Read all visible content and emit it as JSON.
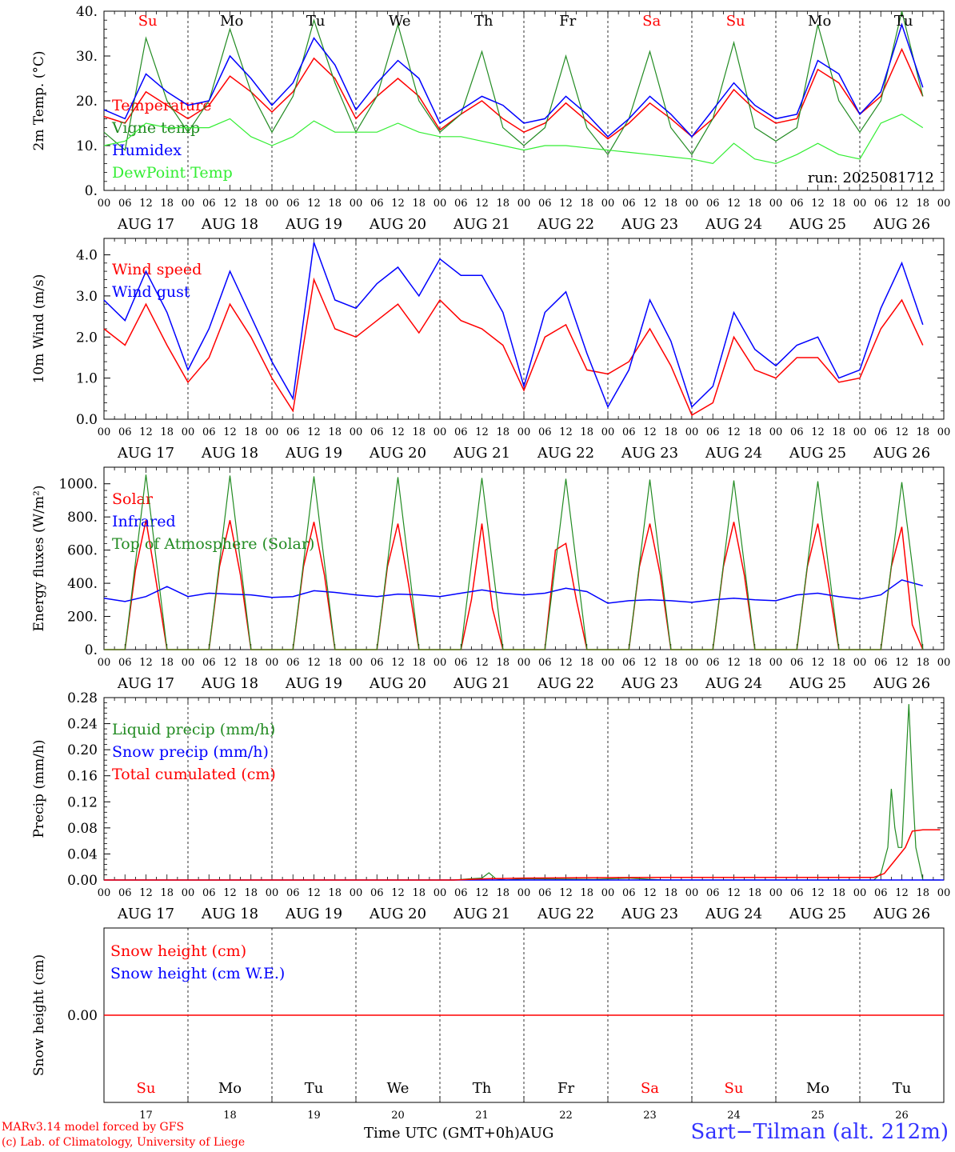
{
  "footer": {
    "model": "MARv3.14 model forced by GFS",
    "copyright": "(c) Lab. of Climatology, University of Liege",
    "time_label": "Time UTC (GMT+0h)",
    "month_label": "AUG",
    "station": "Sart−Tilman (alt. 212m)"
  },
  "run_label": "run: 2025081712",
  "days": [
    {
      "dow": "Su",
      "date": "AUG 17",
      "num": "17",
      "weekend": true
    },
    {
      "dow": "Mo",
      "date": "AUG 18",
      "num": "18",
      "weekend": false
    },
    {
      "dow": "Tu",
      "date": "AUG 19",
      "num": "19",
      "weekend": false
    },
    {
      "dow": "We",
      "date": "AUG 20",
      "num": "20",
      "weekend": false
    },
    {
      "dow": "Th",
      "date": "AUG 21",
      "num": "21",
      "weekend": false
    },
    {
      "dow": "Fr",
      "date": "AUG 22",
      "num": "22",
      "weekend": false
    },
    {
      "dow": "Sa",
      "date": "AUG 23",
      "num": "23",
      "weekend": true
    },
    {
      "dow": "Su",
      "date": "AUG 24",
      "num": "24",
      "weekend": true
    },
    {
      "dow": "Mo",
      "date": "AUG 25",
      "num": "25",
      "weekend": false
    },
    {
      "dow": "Tu",
      "date": "AUG 26",
      "num": "26",
      "weekend": false
    }
  ],
  "hour_ticks": [
    "00",
    "06",
    "12",
    "18"
  ],
  "final_hour_tick": "00",
  "colors": {
    "red": "#ff0000",
    "green": "#228b22",
    "blue": "#0000ff",
    "lime": "#33ee33",
    "station": "#3333ff"
  },
  "chart_data": [
    {
      "id": "temp",
      "type": "line",
      "ylabel": "2m Temp. (°C)",
      "ylim": [
        0,
        40
      ],
      "yticks": [
        0,
        10,
        20,
        30,
        40
      ],
      "ytick_labels": [
        "0.",
        "10.",
        "20.",
        "30.",
        "40."
      ],
      "x_unit": "hours since 2025-08-17 00:00 UTC",
      "show_dow_labels": true,
      "show_run_label": true,
      "series": [
        {
          "name": "Temperature",
          "color": "red",
          "x": [
            0,
            6,
            12,
            18,
            24,
            30,
            36,
            42,
            48,
            54,
            60,
            66,
            72,
            78,
            84,
            90,
            96,
            102,
            108,
            114,
            120,
            126,
            132,
            138,
            144,
            150,
            156,
            162,
            168,
            174,
            180,
            186,
            192,
            198,
            204,
            210,
            216,
            222,
            228,
            234
          ],
          "y": [
            16.5,
            15,
            22,
            19,
            16,
            19,
            25.5,
            22,
            17.5,
            22,
            29.5,
            25,
            16,
            21,
            25,
            21,
            13.5,
            17,
            20,
            16,
            13,
            15,
            19.5,
            15.5,
            11.5,
            15,
            19.5,
            16,
            12,
            16,
            22.5,
            18,
            15,
            16,
            27,
            24,
            17,
            21,
            31.5,
            21
          ]
        },
        {
          "name": "Vigne temp",
          "color": "green",
          "x": [
            0,
            6,
            12,
            18,
            24,
            30,
            36,
            42,
            48,
            54,
            60,
            66,
            72,
            78,
            84,
            90,
            96,
            102,
            108,
            114,
            120,
            126,
            132,
            138,
            144,
            150,
            156,
            162,
            168,
            174,
            180,
            186,
            192,
            198,
            204,
            210,
            216,
            222,
            228,
            234
          ],
          "y": [
            13,
            9,
            34,
            20,
            13,
            20,
            36,
            22,
            13,
            21,
            38,
            24,
            13,
            21,
            37,
            20,
            13,
            17,
            31,
            14,
            10,
            14,
            30,
            14,
            8,
            16,
            31,
            14,
            8,
            16,
            33,
            14,
            11,
            14,
            37,
            20,
            13,
            20,
            40,
            21
          ]
        },
        {
          "name": "Humidex",
          "color": "blue",
          "x": [
            0,
            6,
            12,
            18,
            24,
            30,
            36,
            42,
            48,
            54,
            60,
            66,
            72,
            78,
            84,
            90,
            96,
            102,
            108,
            114,
            120,
            126,
            132,
            138,
            144,
            150,
            156,
            162,
            168,
            174,
            180,
            186,
            192,
            198,
            204,
            210,
            216,
            222,
            228,
            234
          ],
          "y": [
            18,
            16,
            26,
            22,
            19,
            20,
            30,
            25,
            19,
            24,
            34,
            28,
            18,
            24,
            29,
            25,
            15,
            18,
            21,
            19,
            15,
            16,
            21,
            17,
            12,
            16,
            21,
            17,
            12,
            18,
            24,
            19,
            16,
            17,
            29,
            26,
            17,
            22,
            37,
            23
          ]
        },
        {
          "name": "DewPoint Temp",
          "color": "lime",
          "x": [
            0,
            6,
            12,
            18,
            24,
            30,
            36,
            42,
            48,
            54,
            60,
            66,
            72,
            78,
            84,
            90,
            96,
            102,
            108,
            114,
            120,
            126,
            132,
            138,
            144,
            150,
            156,
            162,
            168,
            174,
            180,
            186,
            192,
            198,
            204,
            210,
            216,
            222,
            228,
            234
          ],
          "y": [
            10,
            11,
            15,
            14,
            14,
            14,
            16,
            12,
            10,
            12,
            15.5,
            13,
            13,
            13,
            15,
            13,
            12,
            12,
            11,
            10,
            9,
            10,
            10,
            9.5,
            9,
            8.5,
            8,
            7.5,
            7,
            6,
            10.5,
            7,
            6,
            8,
            10.5,
            8,
            7,
            15,
            17,
            14
          ]
        }
      ]
    },
    {
      "id": "wind",
      "type": "line",
      "ylabel": "10m Wind (m/s)",
      "ylim": [
        0,
        4.4
      ],
      "yticks": [
        0,
        1,
        2,
        3,
        4
      ],
      "ytick_labels": [
        "0.0",
        "1.0",
        "2.0",
        "3.0",
        "4.0"
      ],
      "x_unit": "hours since 2025-08-17 00:00 UTC",
      "series": [
        {
          "name": "Wind speed",
          "color": "red",
          "x": [
            0,
            6,
            12,
            18,
            24,
            30,
            36,
            42,
            48,
            54,
            60,
            66,
            72,
            78,
            84,
            90,
            96,
            102,
            108,
            114,
            120,
            126,
            132,
            138,
            144,
            150,
            156,
            162,
            168,
            174,
            180,
            186,
            192,
            198,
            204,
            210,
            216,
            222,
            228,
            234
          ],
          "y": [
            2.2,
            1.8,
            2.8,
            1.8,
            0.9,
            1.5,
            2.8,
            2.0,
            1.0,
            0.2,
            3.4,
            2.2,
            2.0,
            2.4,
            2.8,
            2.1,
            2.9,
            2.4,
            2.2,
            1.8,
            0.7,
            2.0,
            2.3,
            1.2,
            1.1,
            1.4,
            2.2,
            1.3,
            0.1,
            0.4,
            2.0,
            1.2,
            1.0,
            1.5,
            1.5,
            0.9,
            1.0,
            2.2,
            2.9,
            1.8
          ]
        },
        {
          "name": "Wind gust",
          "color": "blue",
          "x": [
            0,
            6,
            12,
            18,
            24,
            30,
            36,
            42,
            48,
            54,
            60,
            66,
            72,
            78,
            84,
            90,
            96,
            102,
            108,
            114,
            120,
            126,
            132,
            138,
            144,
            150,
            156,
            162,
            168,
            174,
            180,
            186,
            192,
            198,
            204,
            210,
            216,
            222,
            228,
            234
          ],
          "y": [
            2.9,
            2.4,
            3.6,
            2.6,
            1.2,
            2.2,
            3.6,
            2.5,
            1.4,
            0.5,
            4.3,
            2.9,
            2.7,
            3.3,
            3.7,
            3.0,
            3.9,
            3.5,
            3.5,
            2.6,
            0.8,
            2.6,
            3.1,
            1.6,
            0.3,
            1.2,
            2.9,
            1.9,
            0.3,
            0.8,
            2.6,
            1.7,
            1.3,
            1.8,
            2.0,
            1.0,
            1.2,
            2.7,
            3.8,
            2.3
          ]
        }
      ]
    },
    {
      "id": "energy",
      "type": "line",
      "ylabel": "Energy fluxes (W/m²)",
      "ylim": [
        0,
        1100
      ],
      "yticks": [
        0,
        200,
        400,
        600,
        800,
        1000
      ],
      "ytick_labels": [
        "0.",
        "200.",
        "400.",
        "600.",
        "800.",
        "1000."
      ],
      "x_unit": "hours since 2025-08-17 00:00 UTC",
      "series": [
        {
          "name": "Solar",
          "color": "red",
          "x": [
            0,
            6,
            9,
            12,
            15,
            18,
            24,
            30,
            33,
            36,
            39,
            42,
            48,
            54,
            57,
            60,
            63,
            66,
            72,
            78,
            81,
            84,
            87,
            90,
            96,
            102,
            105,
            108,
            111,
            114,
            120,
            126,
            129,
            132,
            135,
            138,
            144,
            150,
            153,
            156,
            159,
            162,
            168,
            174,
            177,
            180,
            183,
            186,
            192,
            198,
            201,
            204,
            207,
            210,
            216,
            222,
            225,
            228,
            231,
            234
          ],
          "y": [
            0,
            0,
            480,
            780,
            400,
            0,
            0,
            0,
            500,
            780,
            450,
            0,
            0,
            0,
            500,
            770,
            450,
            0,
            0,
            0,
            500,
            760,
            400,
            0,
            0,
            0,
            300,
            760,
            250,
            0,
            0,
            0,
            600,
            640,
            300,
            0,
            0,
            0,
            500,
            760,
            450,
            0,
            0,
            0,
            500,
            770,
            450,
            0,
            0,
            0,
            500,
            760,
            400,
            0,
            0,
            0,
            500,
            740,
            150,
            0
          ]
        },
        {
          "name": "Infrared",
          "color": "blue",
          "x": [
            0,
            6,
            12,
            18,
            24,
            30,
            36,
            42,
            48,
            54,
            60,
            66,
            72,
            78,
            84,
            90,
            96,
            102,
            108,
            114,
            120,
            126,
            132,
            138,
            144,
            150,
            156,
            162,
            168,
            174,
            180,
            186,
            192,
            198,
            204,
            210,
            216,
            222,
            228,
            234
          ],
          "y": [
            310,
            290,
            320,
            380,
            320,
            340,
            335,
            330,
            315,
            320,
            355,
            345,
            330,
            320,
            335,
            330,
            320,
            340,
            360,
            340,
            330,
            340,
            370,
            350,
            280,
            295,
            300,
            295,
            285,
            300,
            310,
            300,
            295,
            330,
            340,
            320,
            305,
            330,
            420,
            385
          ]
        },
        {
          "name": "Top of Atmosphere (Solar)",
          "color": "green",
          "x": [
            0,
            6,
            12,
            18,
            24,
            30,
            36,
            42,
            48,
            54,
            60,
            66,
            72,
            78,
            84,
            90,
            96,
            102,
            108,
            114,
            120,
            126,
            132,
            138,
            144,
            150,
            156,
            162,
            168,
            174,
            180,
            186,
            192,
            198,
            204,
            210,
            216,
            222,
            228,
            234
          ],
          "y": [
            0,
            0,
            1055,
            0,
            0,
            0,
            1050,
            0,
            0,
            0,
            1045,
            0,
            0,
            0,
            1040,
            0,
            0,
            0,
            1035,
            0,
            0,
            0,
            1030,
            0,
            0,
            0,
            1025,
            0,
            0,
            0,
            1020,
            0,
            0,
            0,
            1015,
            0,
            0,
            0,
            1010,
            0
          ]
        }
      ]
    },
    {
      "id": "precip",
      "type": "line",
      "ylabel": "Precip (mm/h)",
      "ylim": [
        0,
        0.28
      ],
      "yticks": [
        0,
        0.04,
        0.08,
        0.12,
        0.16,
        0.2,
        0.24,
        0.28
      ],
      "ytick_labels": [
        "0.00",
        "0.04",
        "0.08",
        "0.12",
        "0.16",
        "0.20",
        "0.24",
        "0.28"
      ],
      "x_unit": "hours since 2025-08-17 00:00 UTC",
      "series": [
        {
          "name": "Liquid precip (mm/h)",
          "color": "green",
          "x": [
            0,
            100,
            105,
            108,
            110,
            112,
            115,
            120,
            140,
            150,
            160,
            200,
            220,
            222,
            224,
            225,
            226,
            227,
            228,
            229,
            230,
            231,
            232,
            234,
            239
          ],
          "y": [
            0,
            0,
            0.002,
            0.003,
            0.011,
            0.002,
            0,
            0.002,
            0.001,
            0.003,
            0,
            0,
            0,
            0.01,
            0.05,
            0.14,
            0.08,
            0.05,
            0.05,
            0.16,
            0.27,
            0.15,
            0.05,
            0,
            0
          ]
        },
        {
          "name": "Snow precip (mm/h)",
          "color": "blue",
          "x": [
            0,
            240
          ],
          "y": [
            0,
            0
          ]
        },
        {
          "name": "Total cumulated (cm)",
          "color": "red",
          "x": [
            0,
            100,
            110,
            120,
            160,
            200,
            220,
            223,
            226,
            229,
            231,
            234,
            239
          ],
          "y": [
            0,
            0,
            0.002,
            0.003,
            0.004,
            0.004,
            0.004,
            0.01,
            0.03,
            0.05,
            0.075,
            0.077,
            0.077
          ]
        }
      ]
    },
    {
      "id": "snow",
      "type": "line",
      "ylabel": "Snow height (cm)",
      "ylim": [
        -1,
        1
      ],
      "yticks": [
        0
      ],
      "ytick_labels": [
        "0.00"
      ],
      "x_unit": "hours since 2025-08-17 00:00 UTC",
      "show_bottom_dow": true,
      "series": [
        {
          "name": "Snow height (cm)",
          "color": "red",
          "x": [
            0,
            240
          ],
          "y": [
            0,
            0
          ]
        },
        {
          "name": "Snow height (cm W.E.)",
          "color": "blue",
          "x": [],
          "y": []
        }
      ]
    }
  ]
}
